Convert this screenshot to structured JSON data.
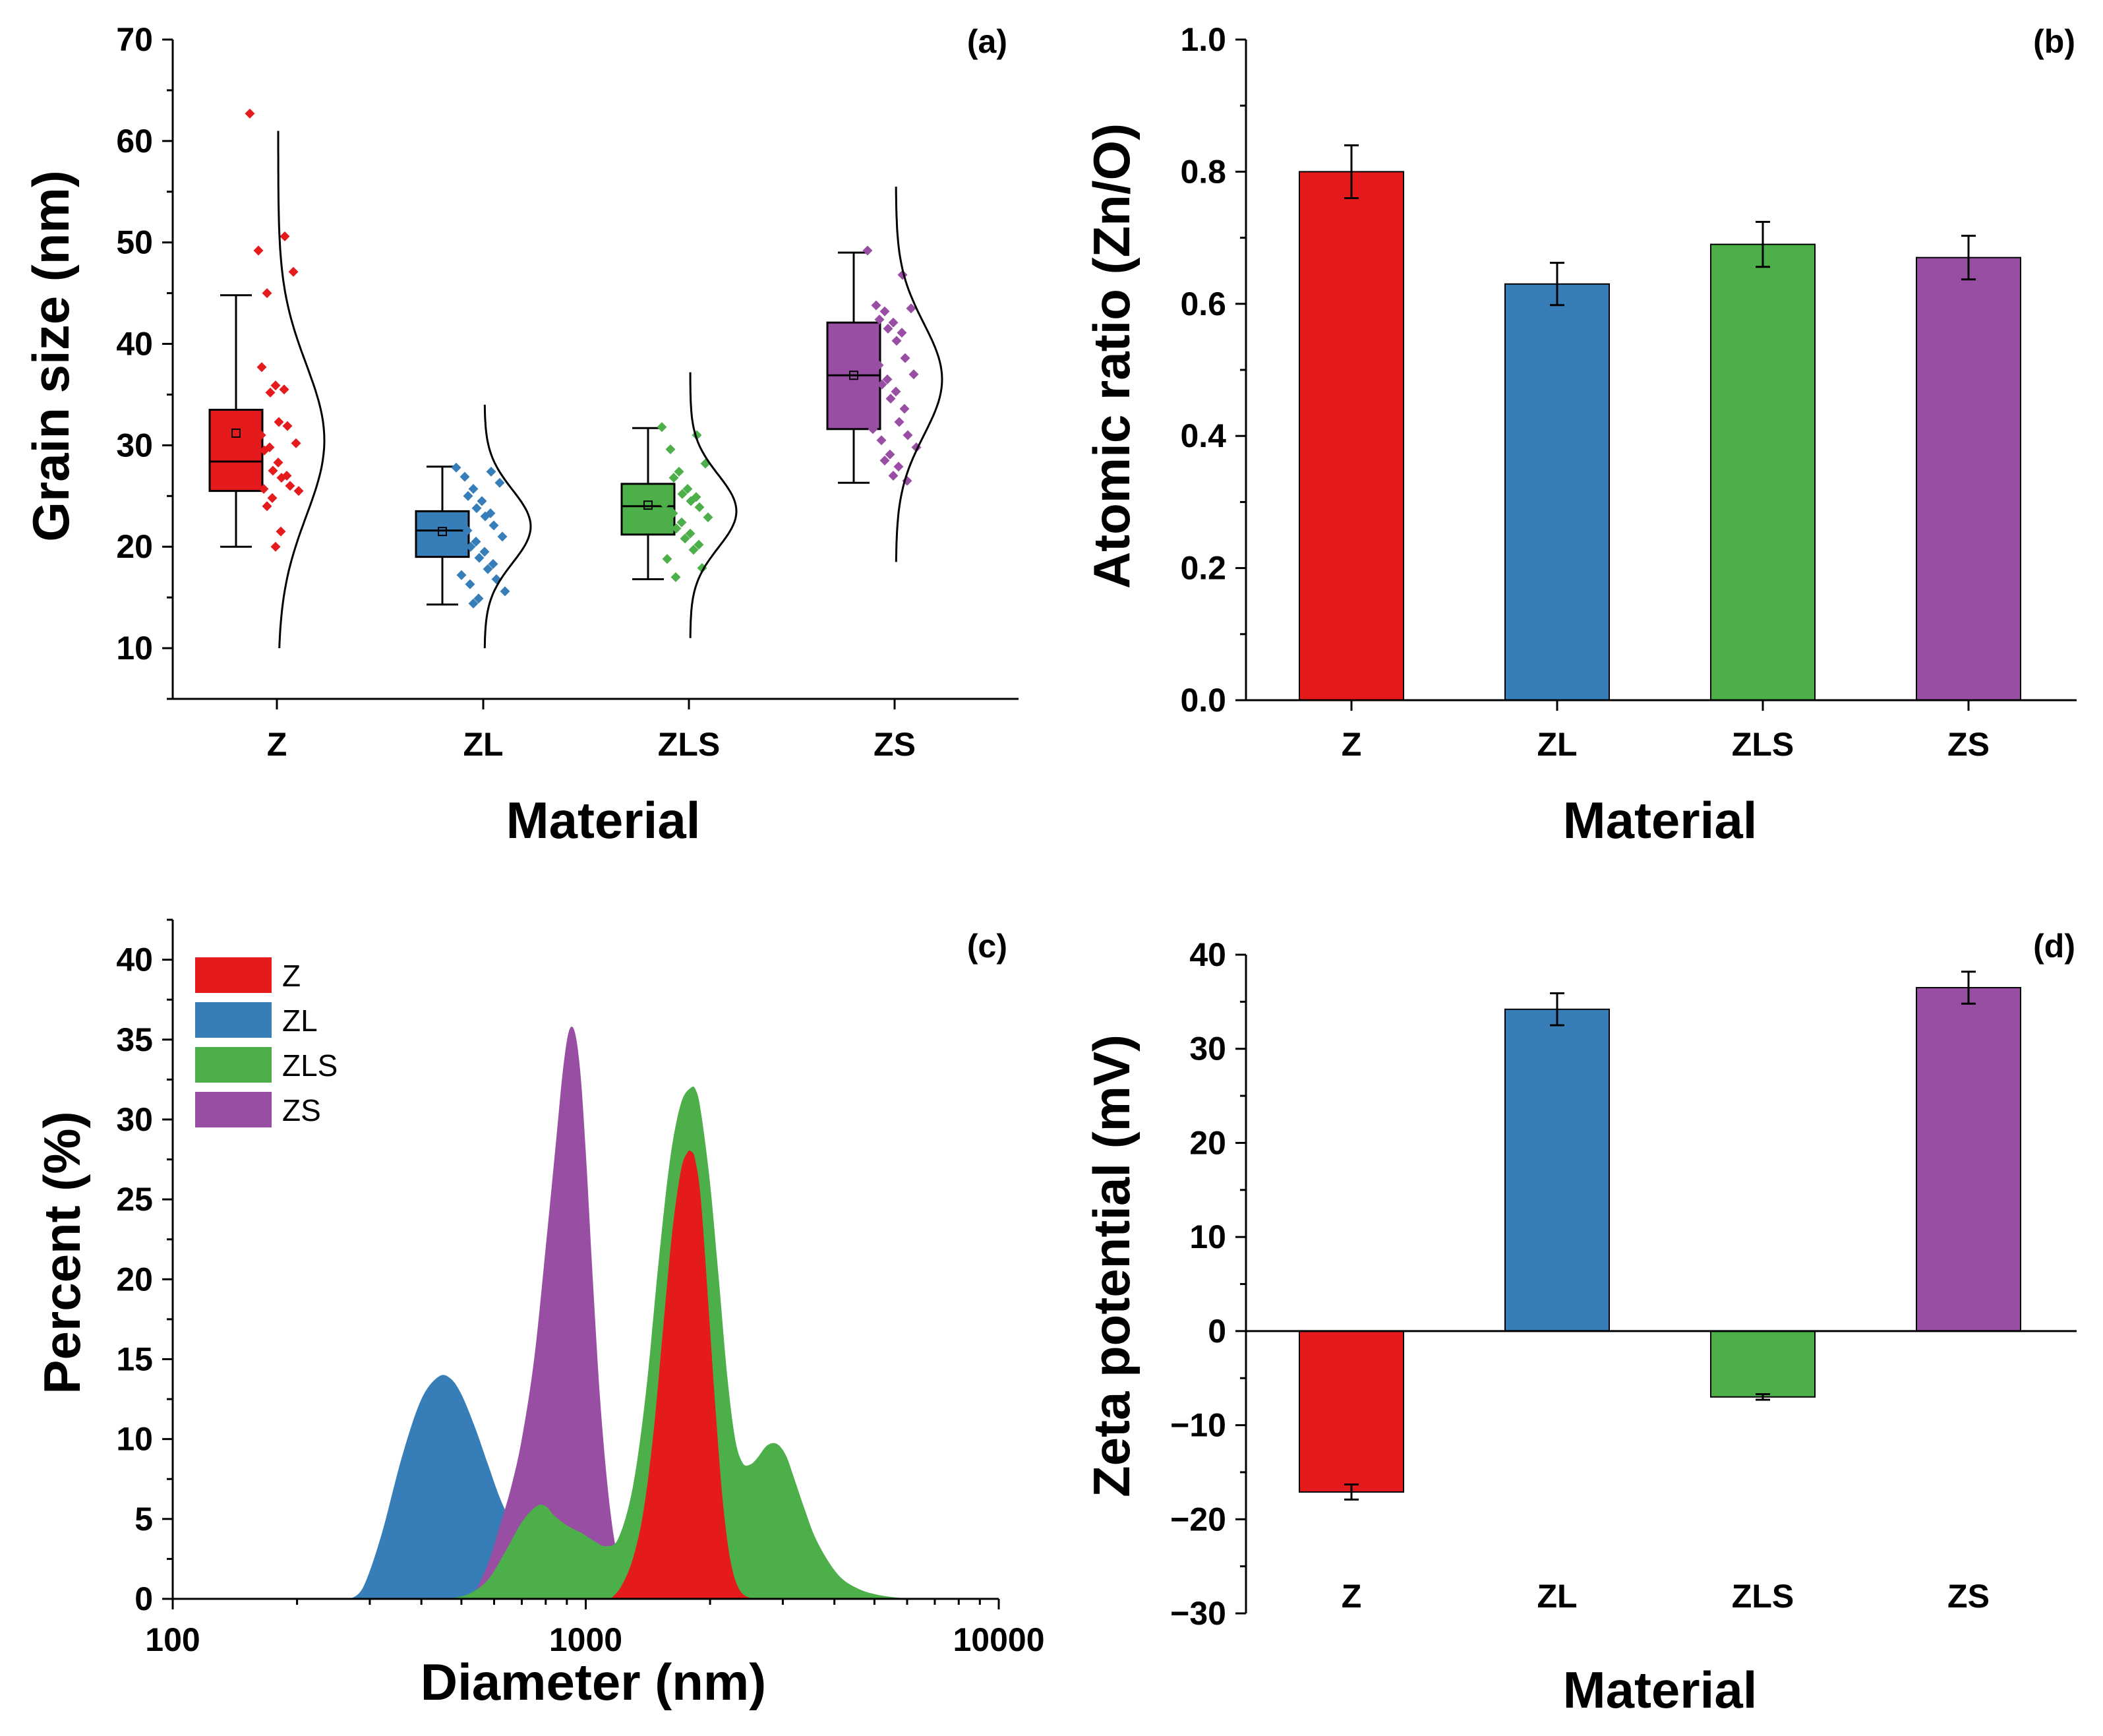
{
  "colors": {
    "Z": "#e41a1c",
    "ZL": "#377eb8",
    "ZLS": "#4daf4a",
    "ZS": "#984ea3"
  },
  "chart_data": [
    {
      "panel": "(a)",
      "type": "box",
      "xlabel": "Material",
      "ylabel": "Grain size (nm)",
      "ylim": [
        5,
        70
      ],
      "yticks": [
        "10",
        "20",
        "30",
        "40",
        "50",
        "60",
        "70"
      ],
      "categories": [
        "Z",
        "ZL",
        "ZLS",
        "ZS"
      ],
      "boxes": [
        {
          "name": "Z",
          "whisker_low": 20,
          "q1": 25.5,
          "median": 28.4,
          "mean": 31.2,
          "q3": 33.5,
          "whisker_high": 44.8,
          "points": [
            62.7,
            50.6,
            49.2,
            47.1,
            45.0,
            37.7,
            35.9,
            35.2,
            35.5,
            32.3,
            32.1,
            31.9,
            31.0,
            30.2,
            29.8,
            29.5,
            28.3,
            27.5,
            27.0,
            26.8,
            26.5,
            26.0,
            25.7,
            25.5,
            24.8,
            24.0,
            21.5,
            20.0
          ],
          "dist": {
            "mean": 30.5,
            "sd": 7.5,
            "lo": 10,
            "hi": 61
          }
        },
        {
          "name": "ZL",
          "whisker_low": 14.3,
          "q1": 19.0,
          "median": 21.6,
          "mean": 21.5,
          "q3": 23.5,
          "whisker_high": 27.9,
          "points": [
            27.8,
            27.4,
            26.9,
            26.3,
            25.7,
            25.0,
            24.5,
            23.8,
            23.3,
            23.0,
            22.6,
            22.1,
            21.6,
            21.0,
            20.5,
            20.0,
            19.5,
            18.9,
            18.3,
            17.8,
            17.2,
            16.8,
            16.3,
            15.6,
            14.9,
            14.4
          ],
          "dist": {
            "mean": 22,
            "sd": 3.6,
            "lo": 10,
            "hi": 34
          }
        },
        {
          "name": "ZLS",
          "whisker_low": 16.8,
          "q1": 21.2,
          "median": 24.0,
          "mean": 24.1,
          "q3": 26.2,
          "whisker_high": 31.7,
          "points": [
            31.8,
            31.0,
            29.6,
            28.2,
            27.4,
            26.8,
            25.7,
            25.2,
            24.9,
            24.5,
            24.2,
            23.9,
            23.3,
            22.9,
            22.4,
            21.8,
            21.3,
            20.8,
            20.2,
            19.7,
            18.8,
            17.9,
            17.0
          ],
          "dist": {
            "mean": 23.5,
            "sd": 3.6,
            "lo": 11,
            "hi": 37.2
          }
        },
        {
          "name": "ZS",
          "whisker_low": 26.3,
          "q1": 31.6,
          "median": 36.9,
          "mean": 36.9,
          "q3": 42.1,
          "whisker_high": 49.0,
          "points": [
            49.2,
            46.8,
            43.8,
            43.5,
            43.2,
            42.4,
            42.1,
            41.5,
            41.1,
            40.3,
            39.8,
            38.6,
            37.9,
            37.0,
            36.5,
            36.0,
            35.3,
            34.6,
            33.6,
            32.3,
            31.6,
            31.0,
            30.5,
            29.8,
            29.1,
            28.5,
            27.9,
            27.0,
            26.5
          ],
          "dist": {
            "mean": 36.5,
            "sd": 5.5,
            "lo": 18.5,
            "hi": 55.5
          }
        }
      ]
    },
    {
      "panel": "(b)",
      "type": "bar",
      "xlabel": "Material",
      "ylabel": "Atomic ratio (Zn/O)",
      "ylim": [
        0,
        1.0
      ],
      "yticks": [
        "0.0",
        "0.2",
        "0.4",
        "0.6",
        "0.8",
        "1.0"
      ],
      "categories": [
        "Z",
        "ZL",
        "ZLS",
        "ZS"
      ],
      "values": [
        0.8,
        0.63,
        0.69,
        0.67
      ],
      "errors": [
        0.04,
        0.032,
        0.034,
        0.033
      ]
    },
    {
      "panel": "(c)",
      "type": "area",
      "xscale": "log",
      "xlabel": "Diameter (nm)",
      "ylabel": "Percent (%)",
      "xlim": [
        100,
        10000
      ],
      "ylim": [
        0,
        42.5
      ],
      "xticks": [
        "100",
        "1000",
        "10000"
      ],
      "yticks": [
        "0",
        "5",
        "10",
        "15",
        "20",
        "25",
        "30",
        "35",
        "40"
      ],
      "legend_position": "top-left",
      "series": [
        {
          "name": "ZL",
          "color_key": "ZL",
          "x": [
            270,
            290,
            320,
            360,
            400,
            440,
            470,
            500,
            540,
            580,
            620,
            660,
            700,
            760,
            820,
            900,
            1000,
            1100,
            1200
          ],
          "y": [
            0,
            0.8,
            4,
            9,
            12.5,
            13.9,
            13.8,
            12.8,
            10.7,
            8.4,
            6.3,
            4.8,
            3.7,
            2.6,
            1.6,
            0.8,
            0.3,
            0.1,
            0
          ]
        },
        {
          "name": "ZS",
          "color_key": "ZS",
          "x": [
            530,
            580,
            620,
            660,
            700,
            750,
            800,
            850,
            880,
            910,
            940,
            970,
            1000,
            1040,
            1080,
            1120,
            1160,
            1200,
            1250,
            1300,
            1400,
            1600
          ],
          "y": [
            0,
            2.2,
            4.6,
            7,
            10,
            15,
            22,
            29,
            33,
            35.5,
            35.5,
            33,
            28,
            20,
            13,
            8,
            4.5,
            2.5,
            1.2,
            0.5,
            0.1,
            0
          ]
        },
        {
          "name": "ZLS",
          "color_key": "ZLS",
          "x": [
            460,
            520,
            580,
            640,
            700,
            760,
            800,
            840,
            900,
            980,
            1050,
            1120,
            1200,
            1300,
            1400,
            1500,
            1600,
            1700,
            1800,
            1850,
            1900,
            2000,
            2100,
            2200,
            2300,
            2400,
            2500,
            2600,
            2750,
            2900,
            3050,
            3200,
            3400,
            3600,
            3900,
            4200,
            4600,
            5000,
            5500,
            6100,
            6700
          ],
          "y": [
            0,
            0.3,
            1.2,
            3,
            4.8,
            5.8,
            5.8,
            5.2,
            4.6,
            4.1,
            3.6,
            3.3,
            3.8,
            7,
            13,
            21,
            27.5,
            31,
            32,
            31.8,
            30.5,
            26,
            20,
            14,
            10,
            8.5,
            8.4,
            8.8,
            9.6,
            9.7,
            9,
            7.5,
            5.5,
            3.8,
            2.2,
            1.2,
            0.6,
            0.3,
            0.12,
            0.03,
            0
          ]
        },
        {
          "name": "Z",
          "color_key": "Z",
          "x": [
            1150,
            1220,
            1300,
            1380,
            1460,
            1540,
            1620,
            1700,
            1760,
            1800,
            1840,
            1900,
            1980,
            2060,
            2140,
            2220,
            2300,
            2400,
            2550
          ],
          "y": [
            0,
            0.8,
            2.5,
            5.5,
            10.5,
            17,
            23,
            26.8,
            27.9,
            28,
            27.5,
            25,
            18.5,
            12,
            6.5,
            3,
            1.2,
            0.3,
            0
          ]
        }
      ],
      "legend": [
        "Z",
        "ZL",
        "ZLS",
        "ZS"
      ]
    },
    {
      "panel": "(d)",
      "type": "bar",
      "xlabel": "Material",
      "ylabel": "Zeta potential (mV)",
      "ylim": [
        -30,
        40
      ],
      "yticks": [
        "−30",
        "−20",
        "−10",
        "0",
        "10",
        "20",
        "30",
        "40"
      ],
      "categories": [
        "Z",
        "ZL",
        "ZLS",
        "ZS"
      ],
      "values": [
        -17.1,
        34.2,
        -7.0,
        36.5
      ],
      "errors": [
        0.8,
        1.7,
        0.3,
        1.7
      ]
    }
  ]
}
